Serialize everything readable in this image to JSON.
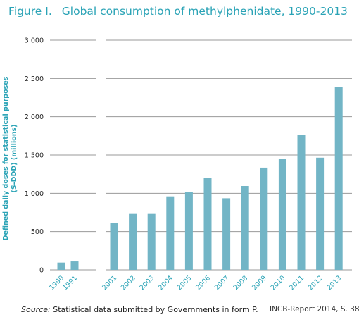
{
  "chart_data": {
    "type": "bar",
    "title_prefix": "Figure I.",
    "title": "Global consumption of methylphenidate, 1990-2013",
    "ylabel_line1": "Defined daily doses for statistical purposes",
    "ylabel_line2": "(S-DDD) (millions)",
    "ylim": [
      0,
      3000
    ],
    "yticks": [
      0,
      500,
      1000,
      1500,
      2000,
      2500,
      3000
    ],
    "ytick_labels": [
      "0",
      "500",
      "1 000",
      "1 500",
      "2 000",
      "2 500",
      "3 000"
    ],
    "grid": true,
    "groups": [
      {
        "categories": [
          "1990",
          "1991"
        ],
        "values": [
          95,
          110
        ]
      },
      {
        "categories": [
          "2001",
          "2002",
          "2003",
          "2004",
          "2005",
          "2006",
          "2007",
          "2008",
          "2009",
          "2010",
          "2011",
          "2012",
          "2013"
        ],
        "values": [
          610,
          730,
          730,
          960,
          1020,
          1205,
          935,
          1095,
          1335,
          1445,
          1765,
          1465,
          2390
        ]
      }
    ],
    "bar_color": "#72b5c6",
    "accent_color": "#2aa3b6"
  },
  "footer": {
    "source_label": "Source:",
    "source_text": " Statistical data submitted by Governments in form P.",
    "credit": "INCB-Report 2014, S. 38"
  }
}
